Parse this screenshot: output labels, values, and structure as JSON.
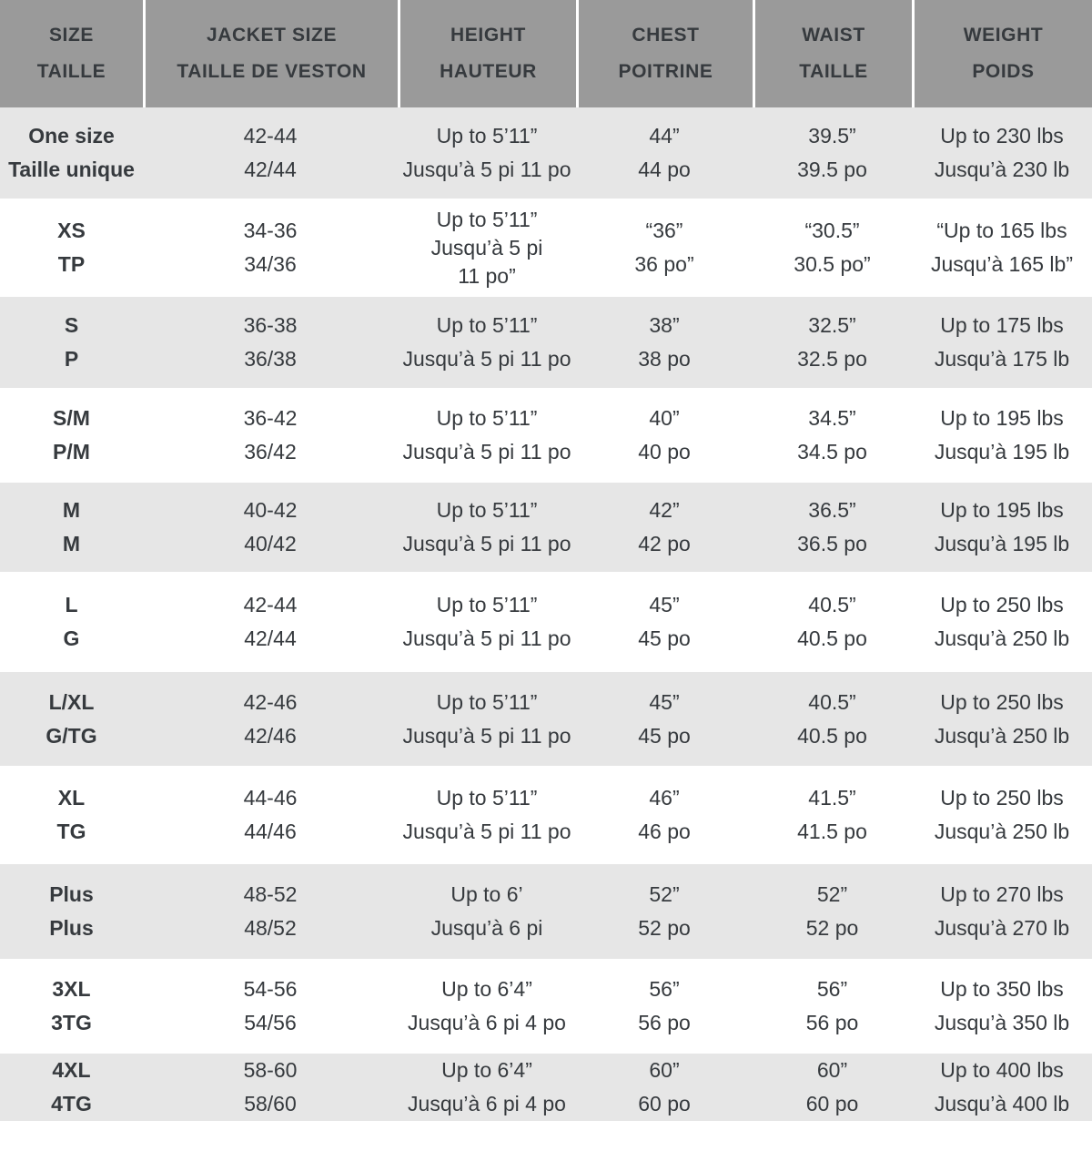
{
  "sizing_table": {
    "headers": [
      [
        "SIZE",
        "TAILLE"
      ],
      [
        "JACKET SIZE",
        "TAILLE DE VESTON"
      ],
      [
        "HEIGHT",
        "HAUTEUR"
      ],
      [
        "CHEST",
        "POITRINE"
      ],
      [
        "WAIST",
        "TAILLE"
      ],
      [
        "WEIGHT",
        "POIDS"
      ]
    ],
    "rows": [
      {
        "size": [
          "One size",
          "Taille unique"
        ],
        "jacket_size": [
          "42-44",
          "42/44"
        ],
        "height": [
          "Up to 5’11”",
          "Jusqu’à 5 pi 11 po"
        ],
        "chest": [
          "44”",
          "44 po"
        ],
        "waist": [
          "39.5”",
          "39.5 po"
        ],
        "weight": [
          "Up to 230 lbs",
          "Jusqu’à 230 lb"
        ]
      },
      {
        "size": [
          "XS",
          "TP"
        ],
        "jacket_size": [
          "34-36",
          "34/36"
        ],
        "height": [
          "Up to 5’11”",
          "Jusqu’à 5 pi",
          "11 po”"
        ],
        "chest": [
          "“36”",
          "36 po”"
        ],
        "waist": [
          "“30.5”",
          "30.5 po”"
        ],
        "weight": [
          "“Up to 165 lbs",
          "Jusqu’à 165 lb”"
        ]
      },
      {
        "size": [
          "S",
          "P"
        ],
        "jacket_size": [
          "36-38",
          "36/38"
        ],
        "height": [
          "Up to 5’11”",
          "Jusqu’à 5 pi 11 po"
        ],
        "chest": [
          "38”",
          "38 po"
        ],
        "waist": [
          "32.5”",
          "32.5 po"
        ],
        "weight": [
          "Up to 175 lbs",
          "Jusqu’à 175 lb"
        ]
      },
      {
        "size": [
          "S/M",
          "P/M"
        ],
        "jacket_size": [
          "36-42",
          "36/42"
        ],
        "height": [
          "Up to 5’11”",
          "Jusqu’à 5 pi 11 po"
        ],
        "chest": [
          "40”",
          "40 po"
        ],
        "waist": [
          "34.5”",
          "34.5 po"
        ],
        "weight": [
          "Up to 195 lbs",
          "Jusqu’à 195 lb"
        ]
      },
      {
        "size": [
          "M",
          "M"
        ],
        "jacket_size": [
          "40-42",
          "40/42"
        ],
        "height": [
          "Up to 5’11”",
          "Jusqu’à 5 pi 11 po"
        ],
        "chest": [
          "42”",
          "42 po"
        ],
        "waist": [
          "36.5”",
          "36.5 po"
        ],
        "weight": [
          "Up to 195 lbs",
          "Jusqu’à 195 lb"
        ]
      },
      {
        "size": [
          "L",
          "G"
        ],
        "jacket_size": [
          "42-44",
          "42/44"
        ],
        "height": [
          "Up to 5’11”",
          "Jusqu’à 5 pi 11 po"
        ],
        "chest": [
          "45”",
          "45 po"
        ],
        "waist": [
          "40.5”",
          "40.5 po"
        ],
        "weight": [
          "Up to 250 lbs",
          "Jusqu’à 250 lb"
        ]
      },
      {
        "size": [
          "L/XL",
          "G/TG"
        ],
        "jacket_size": [
          "42-46",
          "42/46"
        ],
        "height": [
          "Up to 5’11”",
          "Jusqu’à 5 pi 11 po"
        ],
        "chest": [
          "45”",
          "45 po"
        ],
        "waist": [
          "40.5”",
          "40.5 po"
        ],
        "weight": [
          "Up to 250 lbs",
          "Jusqu’à 250 lb"
        ]
      },
      {
        "size": [
          "XL",
          "TG"
        ],
        "jacket_size": [
          "44-46",
          "44/46"
        ],
        "height": [
          "Up to 5’11”",
          "Jusqu’à 5 pi 11 po"
        ],
        "chest": [
          "46”",
          "46 po"
        ],
        "waist": [
          "41.5”",
          "41.5 po"
        ],
        "weight": [
          "Up to 250 lbs",
          "Jusqu’à 250 lb"
        ]
      },
      {
        "size": [
          "Plus",
          "Plus"
        ],
        "jacket_size": [
          "48-52",
          "48/52"
        ],
        "height": [
          "Up to 6’",
          "Jusqu’à 6 pi"
        ],
        "chest": [
          "52”",
          "52 po"
        ],
        "waist": [
          "52”",
          "52 po"
        ],
        "weight": [
          "Up to 270 lbs",
          "Jusqu’à 270 lb"
        ]
      },
      {
        "size": [
          "3XL",
          "3TG"
        ],
        "jacket_size": [
          "54-56",
          "54/56"
        ],
        "height": [
          "Up to 6’4”",
          "Jusqu’à 6 pi 4 po"
        ],
        "chest": [
          "56”",
          "56 po"
        ],
        "waist": [
          "56”",
          "56 po"
        ],
        "weight": [
          "Up to 350 lbs",
          "Jusqu’à 350 lb"
        ]
      },
      {
        "size": [
          "4XL",
          "4TG"
        ],
        "jacket_size": [
          "58-60",
          "58/60"
        ],
        "height": [
          "Up to 6’4”",
          "Jusqu’à 6 pi 4 po"
        ],
        "chest": [
          "60”",
          "60 po"
        ],
        "waist": [
          "60”",
          "60 po"
        ],
        "weight": [
          "Up to 400 lbs",
          "Jusqu’à 400 lb"
        ]
      }
    ],
    "colors": {
      "header_background": "#9a9a9a",
      "header_text": "#363a3e",
      "body_text": "#363a3e",
      "stripe_row_background": "#e6e6e6",
      "plain_row_background": "#ffffff",
      "header_separator": "#ffffff"
    }
  }
}
